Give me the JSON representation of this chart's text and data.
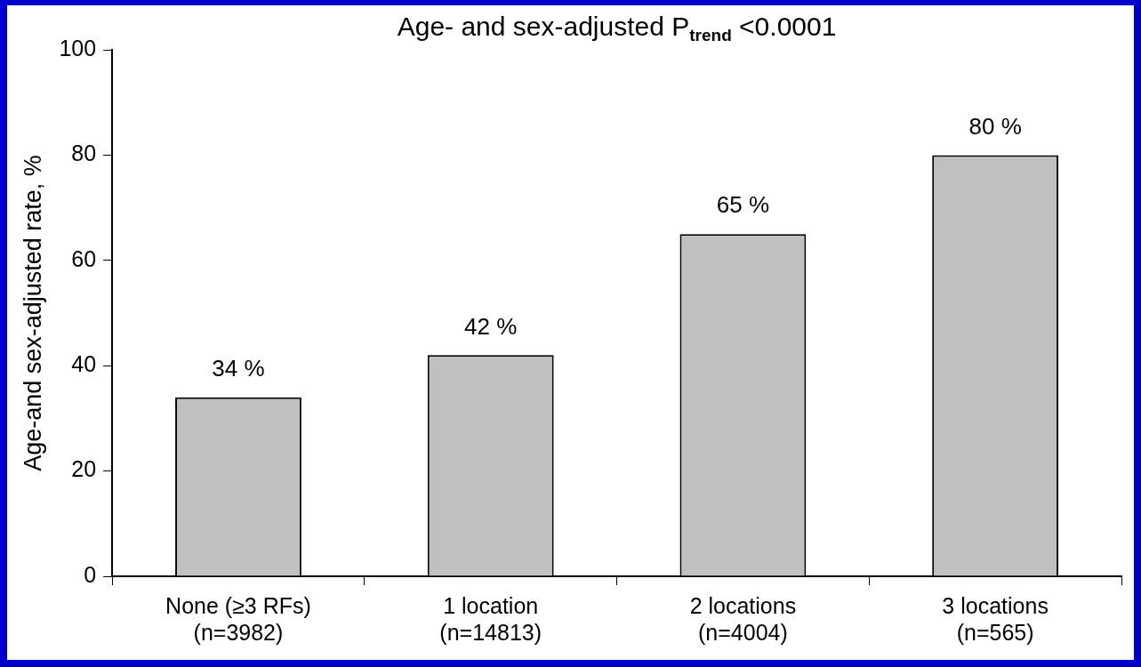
{
  "chart_data": {
    "type": "bar",
    "title": "Age- and sex-adjusted P$_{trend}$ <0.0001",
    "ylabel": "Age-and sex-adjusted rate, %",
    "categories": [
      "None (≥3 RFs)\n(n=3982)",
      "1 location\n(n=14813)",
      "2 locations\n(n=4004)",
      "3 locations\n(n=565)"
    ],
    "values": [
      34,
      42,
      65,
      80
    ],
    "color": "#c0c0c0",
    "value_labels": [
      "34 %",
      "42 %",
      "65 %",
      "80 %"
    ],
    "ylim": [
      0,
      100
    ],
    "yticks": [
      0,
      20,
      40,
      60,
      80,
      100
    ],
    "grid": false,
    "legend": false
  }
}
